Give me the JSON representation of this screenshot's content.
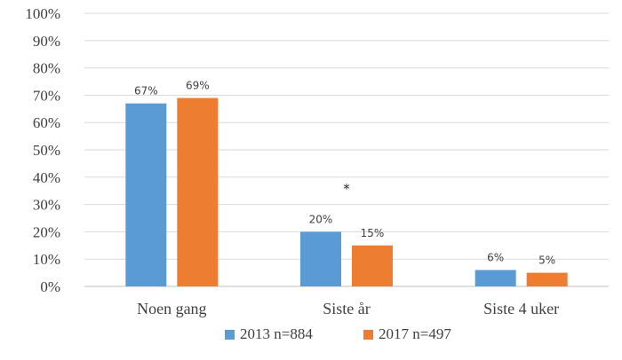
{
  "chart_data": {
    "type": "bar",
    "categories": [
      "Noen gang",
      "Siste år",
      "Siste 4 uker"
    ],
    "series": [
      {
        "name": "2013 n=884",
        "values": [
          67,
          20,
          6
        ],
        "labels": [
          "67%",
          "20%",
          "6%"
        ],
        "color": "#5B9BD5"
      },
      {
        "name": "2017 n=497",
        "values": [
          69,
          15,
          5
        ],
        "labels": [
          "69%",
          "15%",
          "5%"
        ],
        "color": "#ED7D31"
      }
    ],
    "ylim": [
      0,
      100
    ],
    "yticks": [
      0,
      10,
      20,
      30,
      40,
      50,
      60,
      70,
      80,
      90,
      100
    ],
    "ytick_labels": [
      "0%",
      "10%",
      "20%",
      "30%",
      "40%",
      "50%",
      "60%",
      "70%",
      "80%",
      "90%",
      "100%"
    ],
    "grid": true,
    "legend": "bottom",
    "annotations": [
      {
        "text": "*",
        "category": "Siste år",
        "y": 36
      }
    ]
  }
}
